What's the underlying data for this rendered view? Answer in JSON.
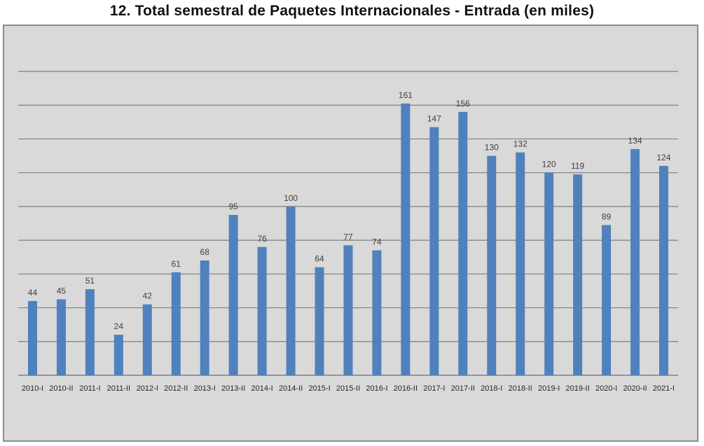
{
  "chart_data": {
    "type": "bar",
    "title": "12.  Total semestral de Paquetes Internacionales - Entrada (en miles)",
    "xlabel": "",
    "ylabel": "",
    "ylim": [
      0,
      180
    ],
    "grid": true,
    "bar_color": "#4f81bd",
    "grid_color": "#7f7f7f",
    "background_color": "#d9d9d9",
    "categories": [
      "2010-I",
      "2010-II",
      "2011-I",
      "2011-II",
      "2012-I",
      "2012-II",
      "2013-I",
      "2013-II",
      "2014-I",
      "2014-II",
      "2015-I",
      "2015-II",
      "2016-I",
      "2016-II",
      "2017-I",
      "2017-II",
      "2018-I",
      "2018-II",
      "2019-I",
      "2019-II",
      "2020-I",
      "2020-II",
      "2021-I"
    ],
    "values": [
      44,
      45,
      51,
      24,
      42,
      61,
      68,
      95,
      76,
      100,
      64,
      77,
      74,
      161,
      147,
      156,
      130,
      132,
      120,
      119,
      89,
      134,
      124
    ]
  }
}
